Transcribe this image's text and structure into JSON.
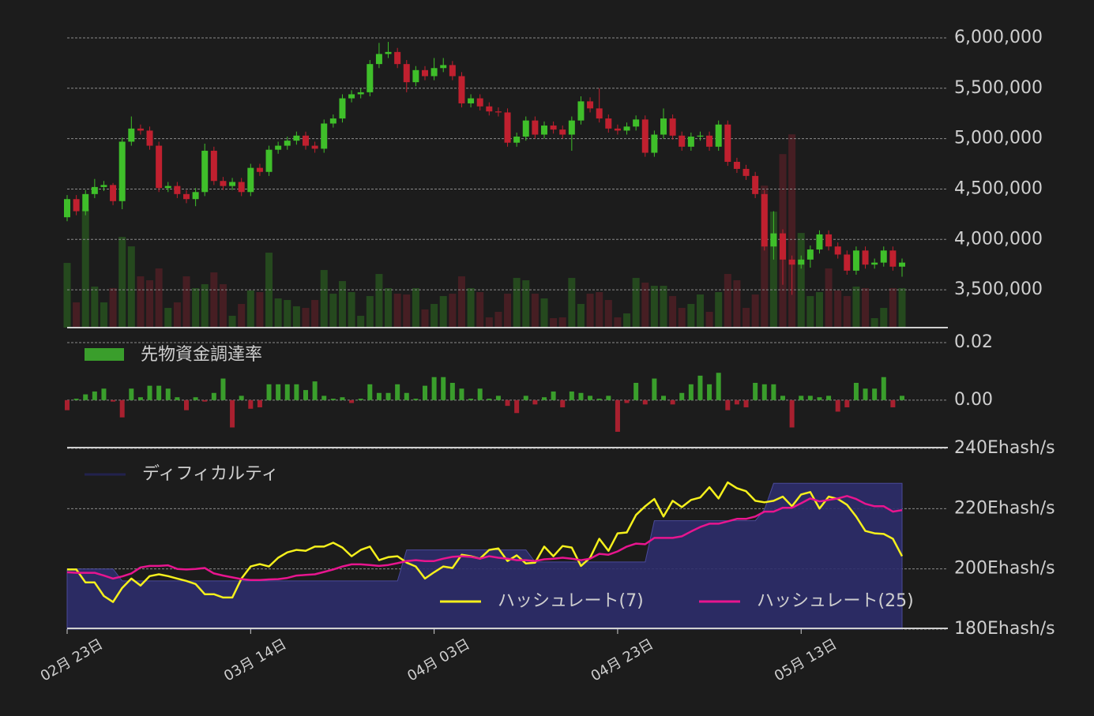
{
  "chart_data": [
    {
      "type": "candlestick",
      "open": [
        4220000,
        4400000,
        4280000,
        4450000,
        4520000,
        4540000,
        4380000,
        4970000,
        5100000,
        5080000,
        4930000,
        4510000,
        4530000,
        4450000,
        4400000,
        4470000,
        4880000,
        4580000,
        4530000,
        4570000,
        4470000,
        4710000,
        4670000,
        4890000,
        4930000,
        4980000,
        5030000,
        4930000,
        4900000,
        5150000,
        5200000,
        5400000,
        5440000,
        5460000,
        5740000,
        5840000,
        5860000,
        5740000,
        5560000,
        5680000,
        5620000,
        5700000,
        5730000,
        5620000,
        5350000,
        5400000,
        5320000,
        5270000,
        5260000,
        4960000,
        5020000,
        5180000,
        5040000,
        5130000,
        5090000,
        5040000,
        5180000,
        5370000,
        5300000,
        5200000,
        5100000,
        5080000,
        5120000,
        5190000,
        4860000,
        5040000,
        5200000,
        5030000,
        4920000,
        5020000,
        5030000,
        4920000,
        5140000,
        4770000,
        4700000,
        4630000,
        4450000,
        3930000,
        4060000,
        3800000,
        3750000,
        3800000,
        3900000,
        4050000,
        3930000,
        3850000,
        3690000,
        3890000,
        3750000,
        3770000,
        3890000,
        3730000
      ],
      "high": [
        4440000,
        4440000,
        4490000,
        4600000,
        4580000,
        4560000,
        5010000,
        5220000,
        5140000,
        5120000,
        4970000,
        4570000,
        4570000,
        4490000,
        4510000,
        4950000,
        4920000,
        4620000,
        4610000,
        4610000,
        4750000,
        4750000,
        4930000,
        4970000,
        5020000,
        5070000,
        5070000,
        4970000,
        5190000,
        5240000,
        5440000,
        5480000,
        5500000,
        5780000,
        5950000,
        5960000,
        5900000,
        5780000,
        5720000,
        5720000,
        5800000,
        5800000,
        5770000,
        5660000,
        5440000,
        5440000,
        5360000,
        5310000,
        5300000,
        5060000,
        5220000,
        5220000,
        5170000,
        5170000,
        5130000,
        5220000,
        5420000,
        5410000,
        5500000,
        5240000,
        5140000,
        5160000,
        5230000,
        5230000,
        5080000,
        5300000,
        5240000,
        5070000,
        5060000,
        5070000,
        5070000,
        5180000,
        5180000,
        4810000,
        4740000,
        4670000,
        4490000,
        4280000,
        4100000,
        3840000,
        3840000,
        3940000,
        4090000,
        4090000,
        3970000,
        3890000,
        3930000,
        3930000,
        3810000,
        3930000,
        3930000,
        3810000
      ],
      "low": [
        4180000,
        4240000,
        4240000,
        4410000,
        4480000,
        4340000,
        4300000,
        4930000,
        5040000,
        4890000,
        4470000,
        4470000,
        4410000,
        4360000,
        4330000,
        4430000,
        4540000,
        4490000,
        4490000,
        4430000,
        4430000,
        4630000,
        4630000,
        4850000,
        4890000,
        4940000,
        4890000,
        4860000,
        4860000,
        5110000,
        5160000,
        5360000,
        5400000,
        5420000,
        5700000,
        5800000,
        5700000,
        5460000,
        5520000,
        5580000,
        5580000,
        5660000,
        5580000,
        5310000,
        5310000,
        5280000,
        5230000,
        5220000,
        4920000,
        4920000,
        4980000,
        5000000,
        5000000,
        5050000,
        5000000,
        4880000,
        5140000,
        5260000,
        5160000,
        5060000,
        5040000,
        5040000,
        5080000,
        4820000,
        4820000,
        5000000,
        4990000,
        4880000,
        4880000,
        4980000,
        4880000,
        4880000,
        4730000,
        4660000,
        4590000,
        4410000,
        3890000,
        3800000,
        3550000,
        3450000,
        3710000,
        3720000,
        3860000,
        3890000,
        3810000,
        3650000,
        3650000,
        3710000,
        3710000,
        3730000,
        3690000,
        3630000
      ],
      "close": [
        4400000,
        4280000,
        4450000,
        4520000,
        4540000,
        4380000,
        4970000,
        5100000,
        5080000,
        4930000,
        4510000,
        4530000,
        4450000,
        4400000,
        4470000,
        4880000,
        4580000,
        4530000,
        4570000,
        4470000,
        4710000,
        4670000,
        4890000,
        4930000,
        4980000,
        5030000,
        4930000,
        4900000,
        5150000,
        5200000,
        5400000,
        5440000,
        5460000,
        5740000,
        5840000,
        5860000,
        5740000,
        5560000,
        5680000,
        5620000,
        5700000,
        5730000,
        5620000,
        5350000,
        5400000,
        5320000,
        5270000,
        5260000,
        4960000,
        5020000,
        5180000,
        5040000,
        5130000,
        5090000,
        5040000,
        5180000,
        5370000,
        5300000,
        5200000,
        5100000,
        5080000,
        5120000,
        5190000,
        4860000,
        5040000,
        5200000,
        5030000,
        4920000,
        5020000,
        5030000,
        4920000,
        5140000,
        4770000,
        4700000,
        4630000,
        4450000,
        3930000,
        4060000,
        3800000,
        3750000,
        3800000,
        3900000,
        4050000,
        3930000,
        3850000,
        3690000,
        3890000,
        3750000,
        3770000,
        3890000,
        3730000,
        3770000
      ],
      "volume": [
        82,
        32,
        150,
        52,
        32,
        50,
        115,
        103,
        65,
        60,
        75,
        25,
        32,
        65,
        50,
        55,
        70,
        55,
        15,
        30,
        47,
        45,
        95,
        37,
        35,
        27,
        25,
        35,
        73,
        43,
        59,
        45,
        15,
        40,
        68,
        50,
        43,
        42,
        50,
        23,
        30,
        40,
        43,
        65,
        50,
        45,
        13,
        20,
        43,
        63,
        60,
        43,
        37,
        12,
        13,
        63,
        30,
        43,
        45,
        35,
        13,
        18,
        63,
        57,
        53,
        53,
        40,
        25,
        30,
        42,
        20,
        45,
        68,
        60,
        25,
        42,
        180,
        147,
        220,
        245,
        120,
        40,
        45,
        75,
        47,
        40,
        52,
        50,
        12,
        25,
        50,
        50
      ],
      "volume_lim": [
        0,
        375
      ],
      "up_color": "#3fbf2a",
      "down_color": "#c0202f",
      "volume_up_color": "#27511f",
      "volume_down_color": "#4e1f25",
      "ylim": [
        3125000,
        6060000
      ],
      "yticks": [
        {
          "value": 3500000,
          "label": "3,500,000"
        },
        {
          "value": 4000000,
          "label": "4,000,000"
        },
        {
          "value": 4500000,
          "label": "4,500,000"
        },
        {
          "value": 5000000,
          "label": "5,000,000"
        },
        {
          "value": 5500000,
          "label": "5,500,000"
        },
        {
          "value": 6000000,
          "label": "6,000,000"
        }
      ],
      "grid": true
    },
    {
      "type": "bar",
      "series": [
        {
          "name": "先物資金調達率",
          "color": "#3a9e2c",
          "negative_color": "#a8202f",
          "values": [
            -0.0035,
            0.0005,
            0.002,
            0.003,
            0.004,
            -0.0005,
            -0.006,
            0.004,
            0.001,
            0.005,
            0.005,
            0.004,
            0.001,
            -0.0035,
            0.001,
            -0.0005,
            0.0025,
            0.0075,
            -0.0095,
            0.0015,
            -0.003,
            -0.0025,
            0.0055,
            0.0055,
            0.0055,
            0.0055,
            0.0035,
            0.0065,
            0.0015,
            0.0005,
            0.001,
            -0.001,
            0.0005,
            0.0055,
            0.0025,
            0.0025,
            0.0055,
            0.0025,
            0.0005,
            0.005,
            0.008,
            0.008,
            0.006,
            0.004,
            0.0005,
            0.004,
            0.0005,
            0.0015,
            -0.002,
            -0.0045,
            0.0015,
            -0.0015,
            0.001,
            0.003,
            -0.0025,
            0.003,
            0.0025,
            0.0015,
            0.0005,
            0.0015,
            -0.011,
            -0.001,
            0.006,
            -0.0015,
            0.0075,
            0.0015,
            -0.0015,
            0.0025,
            0.0055,
            0.0085,
            0.0055,
            0.0095,
            -0.0035,
            -0.0015,
            -0.0025,
            0.006,
            0.0055,
            0.0055,
            0.0015,
            -0.0095,
            0.0015,
            0.0015,
            0.001,
            0.0015,
            -0.004,
            -0.0025,
            0.006,
            0.004,
            0.004,
            0.008,
            -0.0025,
            0.0015
          ]
        }
      ],
      "ylim": [
        -0.0165,
        0.0252
      ],
      "yticks": [
        {
          "value": 0,
          "label": "0.00"
        },
        0.02
      ],
      "grid": true
    },
    {
      "type": "line",
      "categories": [
        "02月 23日",
        null,
        null,
        null,
        null,
        null,
        null,
        null,
        null,
        null,
        null,
        null,
        null,
        null,
        null,
        null,
        null,
        null,
        null,
        null,
        "03月 14日",
        null,
        null,
        null,
        null,
        null,
        null,
        null,
        null,
        null,
        null,
        null,
        null,
        null,
        null,
        null,
        null,
        null,
        null,
        null,
        "04月 03日",
        null,
        null,
        null,
        null,
        null,
        null,
        null,
        null,
        null,
        null,
        null,
        null,
        null,
        null,
        null,
        null,
        null,
        null,
        null,
        "04月 23日",
        null,
        null,
        null,
        null,
        null,
        null,
        null,
        null,
        null,
        null,
        null,
        null,
        null,
        null,
        null,
        null,
        null,
        null,
        null,
        "05月 13日",
        null,
        null,
        null,
        null,
        null,
        null,
        null,
        null,
        null,
        null,
        null
      ],
      "series": [
        {
          "name": "ディフィカルティ",
          "color": "#22224e",
          "fill": "#2e2d6b",
          "values": [
            200,
            200,
            200,
            200,
            200,
            200,
            196,
            196,
            196,
            196,
            196,
            196,
            196,
            196,
            196,
            196,
            196,
            196,
            196,
            196,
            196,
            196,
            196,
            196,
            196,
            196,
            196,
            196,
            196,
            196,
            196,
            196,
            196,
            196,
            196,
            196,
            196,
            206.3,
            206.3,
            206.3,
            206.3,
            206.3,
            206.3,
            206.3,
            206.3,
            206.3,
            206.3,
            206.3,
            206.3,
            206.3,
            206.3,
            202.3,
            202.3,
            202.3,
            202.3,
            202.3,
            202.3,
            202.3,
            202.3,
            202.3,
            202.3,
            202.3,
            202.3,
            202.3,
            216,
            216,
            216,
            216,
            216,
            216,
            216,
            216,
            216,
            216,
            216,
            216,
            219.7,
            228.4,
            228.4,
            228.4,
            228.4,
            228.4,
            228.4,
            228.4,
            228.4,
            228.4,
            228.4,
            228.4,
            228.4,
            228.4,
            228.4,
            228.4
          ]
        },
        {
          "name": "ハッシュレート(7)",
          "color": "#f5f01c",
          "values": [
            199.8,
            199.8,
            195.5,
            195.5,
            191,
            189,
            193.7,
            196.8,
            194.5,
            197.6,
            198.2,
            197.6,
            196.8,
            196,
            195,
            191.6,
            191.6,
            190.5,
            190.5,
            196.8,
            200.8,
            201.6,
            200.8,
            203.7,
            205.5,
            206.3,
            206,
            207.4,
            207.4,
            208.7,
            207.1,
            204.2,
            206.3,
            207.4,
            202.9,
            203.9,
            204.2,
            202.1,
            200.8,
            196.8,
            198.9,
            200.8,
            200.3,
            204.7,
            204.2,
            203.4,
            206.3,
            206.8,
            202.6,
            204.5,
            201.8,
            202.1,
            207.4,
            204.2,
            207.6,
            207.1,
            201,
            203.7,
            210,
            206,
            211.8,
            212.1,
            217.9,
            220.8,
            223.2,
            217.4,
            222.6,
            220.5,
            222.9,
            223.7,
            227.1,
            223.4,
            228.7,
            226.8,
            225.8,
            222.6,
            222.1,
            222.6,
            224,
            220.8,
            224.7,
            225.5,
            220,
            224,
            223.2,
            221.3,
            217.4,
            212.6,
            211.8,
            211.6,
            210,
            204.2
          ]
        },
        {
          "name": "ハッシュレート(25)",
          "color": "#e8158f",
          "values": [
            198.9,
            198.7,
            198.7,
            198.7,
            197.8,
            196.8,
            197.5,
            198.5,
            200.5,
            201,
            201,
            201.2,
            200,
            199.8,
            200,
            200.3,
            198.5,
            197.8,
            197.2,
            196.6,
            196.3,
            196.3,
            196.5,
            196.6,
            197,
            197.8,
            198,
            198.2,
            199,
            199.8,
            200.8,
            201.5,
            201.5,
            201.3,
            201,
            201.3,
            201.9,
            202.6,
            202.9,
            202.6,
            202.6,
            203.4,
            204,
            204.2,
            204,
            203.4,
            204.2,
            203.7,
            203.4,
            202.9,
            202.9,
            202.6,
            203.2,
            203.4,
            203.7,
            203.4,
            202.9,
            203.4,
            205,
            204.7,
            205.8,
            207.4,
            208.4,
            208.2,
            210.3,
            210.3,
            210.3,
            210.8,
            212.4,
            213.9,
            215,
            215,
            215.8,
            216.6,
            216.6,
            217.4,
            219,
            219,
            220.3,
            220.3,
            221.8,
            223.4,
            222.4,
            222.9,
            223.4,
            224.2,
            223.2,
            221.6,
            220.8,
            220.8,
            219,
            219.5
          ]
        }
      ],
      "ylim": [
        180,
        240
      ],
      "yticks": [
        {
          "value": 180,
          "label": "180Ehash/s"
        },
        {
          "value": 200,
          "label": "200Ehash/s"
        },
        {
          "value": 220,
          "label": "220Ehash/s"
        },
        {
          "value": 240,
          "label": "240Ehash/s"
        }
      ],
      "grid": true
    }
  ]
}
